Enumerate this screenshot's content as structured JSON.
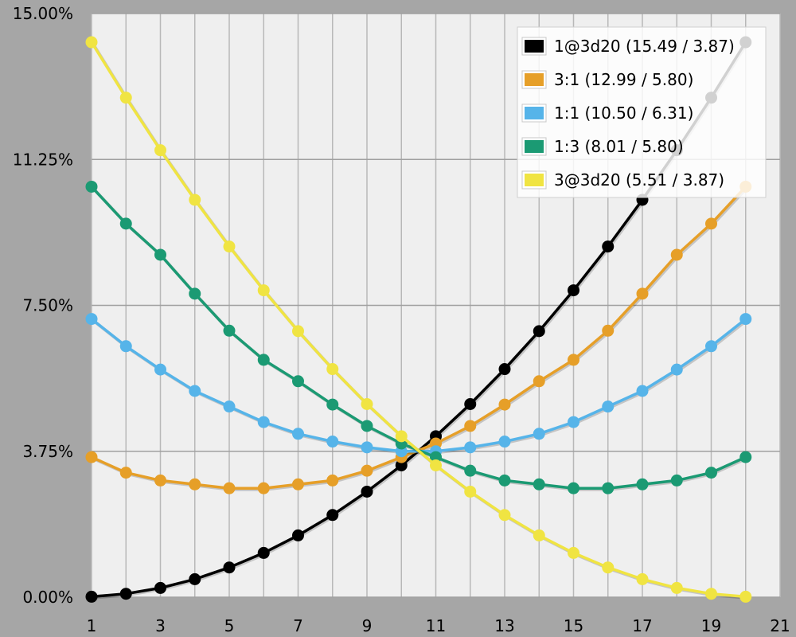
{
  "chart_data": {
    "type": "line",
    "title": "",
    "xlabel": "",
    "ylabel": "",
    "xlim": [
      1,
      21
    ],
    "ylim": [
      0,
      15
    ],
    "x_ticks": [
      "1",
      "3",
      "5",
      "7",
      "9",
      "11",
      "13",
      "15",
      "17",
      "19",
      "21"
    ],
    "y_ticks": [
      "0.00%",
      "3.75%",
      "7.50%",
      "11.25%",
      "15.00%"
    ],
    "grid": true,
    "legend_position": "top-right",
    "x": [
      1,
      2,
      3,
      4,
      5,
      6,
      7,
      8,
      9,
      10,
      11,
      12,
      13,
      14,
      15,
      16,
      17,
      18,
      19,
      20
    ],
    "series": [
      {
        "name": "1@3d20 (15.49 / 3.87)",
        "color": "#000000",
        "values": [
          0.0125,
          0.0875,
          0.2375,
          0.4625,
          0.7625,
          1.1375,
          1.5875,
          2.1125,
          2.7125,
          3.3875,
          4.1375,
          4.9625,
          5.8625,
          6.8375,
          7.8875,
          9.0125,
          10.2125,
          11.4875,
          12.8375,
          14.2625
        ]
      },
      {
        "name": "3:1 (12.99 / 5.80)",
        "color": "#e69f28",
        "values": [
          3.6,
          3.2,
          3.0,
          2.9,
          2.8,
          2.8,
          2.9,
          3.0,
          3.25,
          3.6,
          3.95,
          4.4,
          4.95,
          5.55,
          6.1,
          6.85,
          7.8,
          8.8,
          9.6,
          10.55
        ]
      },
      {
        "name": "1:1 (10.50 / 6.31)",
        "color": "#56b4e9",
        "values": [
          7.15,
          6.45,
          5.85,
          5.3,
          4.9,
          4.5,
          4.2,
          4.0,
          3.85,
          3.75,
          3.75,
          3.85,
          4.0,
          4.2,
          4.5,
          4.9,
          5.3,
          5.85,
          6.45,
          7.15
        ]
      },
      {
        "name": "1:3 (8.01 / 5.80)",
        "color": "#1b9a73",
        "values": [
          10.55,
          9.6,
          8.8,
          7.8,
          6.85,
          6.1,
          5.55,
          4.95,
          4.4,
          3.95,
          3.6,
          3.25,
          3.0,
          2.9,
          2.8,
          2.8,
          2.9,
          3.0,
          3.2,
          3.6
        ]
      },
      {
        "name": "3@3d20 (5.51 / 3.87)",
        "color": "#f0e442",
        "values": [
          14.2625,
          12.8375,
          11.4875,
          10.2125,
          9.0125,
          7.8875,
          6.8375,
          5.8625,
          4.9625,
          4.1375,
          3.3875,
          2.7125,
          2.1125,
          1.5875,
          1.1375,
          0.7625,
          0.4625,
          0.2375,
          0.0875,
          0.0125
        ]
      }
    ]
  }
}
